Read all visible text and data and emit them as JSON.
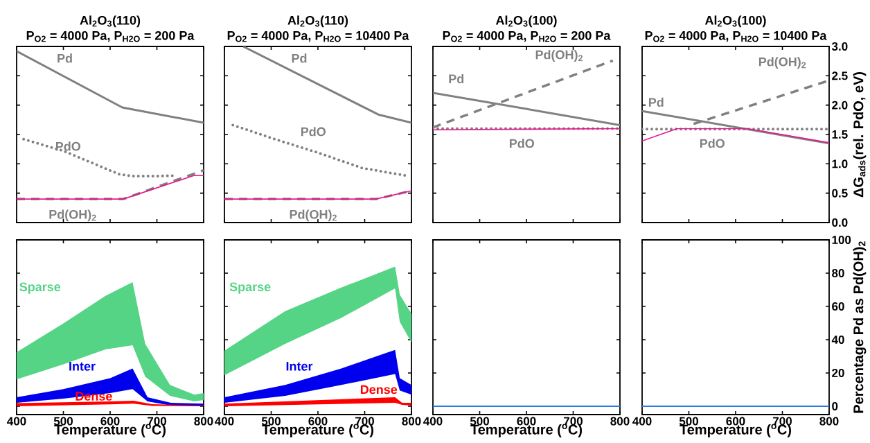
{
  "chart_data": [
    {
      "type": "line",
      "title": "Al$_{2}$O$_{3}$(110)",
      "subtitle": "P$_{O2}$ = 4000 Pa, P$_{H2O}$ = 200 Pa",
      "xlim": [
        400,
        800
      ],
      "ylim": [
        0,
        3.0
      ],
      "xticks": [
        400,
        500,
        600,
        700,
        800
      ],
      "yticks": [
        0,
        0.5,
        1.0,
        1.5,
        2.0,
        2.5,
        3.0
      ],
      "tick_labels": false,
      "marker": "none",
      "series": [
        {
          "name": "Pd",
          "color": "#808080",
          "line_style": "solid",
          "x": [
            400,
            626,
            800
          ],
          "values": [
            2.92,
            1.96,
            1.7
          ]
        },
        {
          "name": "PdO",
          "color": "#808080",
          "line_style": "dotted",
          "x": [
            415,
            500,
            560,
            620,
            650,
            700,
            740
          ],
          "values": [
            1.42,
            1.22,
            1.02,
            0.82,
            0.79,
            0.79,
            0.8
          ]
        },
        {
          "name": "Pd(OH)$_{2}$",
          "color": "#808080",
          "line_style": "dashed",
          "x": [
            400,
            628,
            800
          ],
          "values": [
            0.4,
            0.4,
            0.89
          ]
        },
        {
          "color": "#e8168c",
          "line_style": "solid",
          "x": [
            400,
            628,
            779,
            800
          ],
          "values": [
            0.4,
            0.4,
            0.8,
            0.8
          ]
        }
      ]
    },
    {
      "type": "line",
      "title": "Al$_{2}$O$_{3}$(110)",
      "subtitle": "P$_{O2}$ = 4000 Pa, P$_{H2O}$ = 10400 Pa",
      "xlim": [
        400,
        800
      ],
      "ylim": [
        0,
        3.0
      ],
      "xticks": [
        400,
        500,
        600,
        700,
        800
      ],
      "yticks": [
        0,
        0.5,
        1.0,
        1.5,
        2.0,
        2.5,
        3.0
      ],
      "tick_labels": false,
      "marker": "none",
      "series": [
        {
          "name": "Pd",
          "color": "#808080",
          "line_style": "solid",
          "x": [
            440,
            729,
            800
          ],
          "values": [
            3.0,
            1.84,
            1.7
          ]
        },
        {
          "name": "PdO",
          "color": "#808080",
          "line_style": "dotted",
          "x": [
            418,
            512,
            600,
            694,
            788
          ],
          "values": [
            1.66,
            1.41,
            1.19,
            0.93,
            0.8
          ]
        },
        {
          "name": "Pd(OH)$_{2}$",
          "color": "#808080",
          "line_style": "dashed",
          "x": [
            400,
            724,
            800
          ],
          "values": [
            0.4,
            0.4,
            0.54
          ]
        },
        {
          "color": "#e8168c",
          "line_style": "solid",
          "x": [
            400,
            724,
            800
          ],
          "values": [
            0.4,
            0.4,
            0.54
          ]
        }
      ]
    },
    {
      "type": "line",
      "title": "Al$_{2}$O$_{3}$(100)",
      "subtitle": "P$_{O2}$ = 4000 Pa, P$_{H2O}$ = 200 Pa",
      "xlim": [
        400,
        800
      ],
      "ylim": [
        0,
        3.0
      ],
      "xticks": [
        400,
        500,
        600,
        700,
        800
      ],
      "yticks": [
        0,
        0.5,
        1.0,
        1.5,
        2.0,
        2.5,
        3.0
      ],
      "tick_labels": false,
      "marker": "none",
      "series": [
        {
          "name": "Pd",
          "color": "#808080",
          "line_style": "solid",
          "x": [
            400,
            800
          ],
          "values": [
            2.21,
            1.66
          ]
        },
        {
          "name": "PdO",
          "color": "#808080",
          "line_style": "dotted",
          "x": [
            400,
            800
          ],
          "values": [
            1.6,
            1.6
          ]
        },
        {
          "name": "Pd(OH)$_{2}$",
          "color": "#808080",
          "line_style": "dashed",
          "x": [
            400,
            785
          ],
          "values": [
            1.62,
            2.76
          ]
        },
        {
          "color": "#e8168c",
          "line_style": "solid",
          "x": [
            400,
            800
          ],
          "values": [
            1.58,
            1.6
          ]
        }
      ]
    },
    {
      "type": "line",
      "title": "Al$_{2}$O$_{3}$(100)",
      "subtitle": "P$_{O2}$ = 4000 Pa, P$_{H2O}$ = 10400 Pa",
      "ylabel": "ΔG$_{ads}$(rel. PdO, eV)",
      "xlim": [
        400,
        800
      ],
      "ylim": [
        0,
        3.0
      ],
      "xticks": [
        400,
        500,
        600,
        700,
        800
      ],
      "yticks": [
        {
          "value": 0,
          "label": "0.0"
        },
        {
          "value": 0.5,
          "label": "0.5"
        },
        {
          "value": 1.0,
          "label": "1.0"
        },
        {
          "value": 1.5,
          "label": "1.5"
        },
        {
          "value": 2.0,
          "label": "2.0"
        },
        {
          "value": 2.5,
          "label": "2.5"
        },
        {
          "value": 3.0,
          "label": "3.0"
        }
      ],
      "tick_labels": "y",
      "marker": "none",
      "series": [
        {
          "name": "Pd",
          "color": "#808080",
          "line_style": "solid",
          "x": [
            400,
            800
          ],
          "values": [
            1.9,
            1.35
          ]
        },
        {
          "name": "PdO",
          "color": "#808080",
          "line_style": "dotted",
          "x": [
            400,
            800
          ],
          "values": [
            1.59,
            1.59
          ]
        },
        {
          "name": "Pd(OH)$_{2}$",
          "color": "#808080",
          "line_style": "dashed",
          "x": [
            510,
            800
          ],
          "values": [
            1.68,
            2.42
          ]
        },
        {
          "color": "#e8168c",
          "line_style": "solid",
          "x": [
            400,
            475,
            625,
            800
          ],
          "values": [
            1.39,
            1.6,
            1.6,
            1.36
          ]
        }
      ]
    },
    {
      "type": "area",
      "xlabel": "Temperature ($^{o}$C)",
      "xlim": [
        400,
        800
      ],
      "ylim": [
        -5,
        100
      ],
      "xticks": [
        400,
        500,
        600,
        700,
        800
      ],
      "yticks": [
        0,
        20,
        40,
        60,
        80,
        100
      ],
      "tick_labels": "x",
      "series": [
        {
          "name": "Sparse",
          "color": "#55d485",
          "x": [
            400,
            500,
            590,
            648,
            675,
            728,
            780,
            800
          ],
          "values": [
            null,
            null,
            null,
            null,
            null,
            null,
            null,
            null
          ],
          "upper": [
            32.5,
            49.8,
            66.3,
            74.6,
            37.5,
            12.8,
            7.0,
            7.9
          ],
          "lower": [
            16.1,
            25.2,
            34.2,
            36.7,
            17.8,
            6.2,
            2.9,
            3.7
          ]
        },
        {
          "name": "Inter",
          "color": "#0000ee",
          "x": [
            400,
            500,
            600,
            648,
            680,
            730,
            800
          ],
          "values": [
            null,
            null,
            null,
            null,
            null,
            null,
            null
          ],
          "upper": [
            5.4,
            10.3,
            16.9,
            22.7,
            5.4,
            2.1,
            1.6
          ],
          "lower": [
            2.1,
            4.6,
            7.9,
            10.3,
            2.9,
            0.4,
            0
          ]
        },
        {
          "name": "Dense",
          "color": "#ff0000",
          "x": [
            400,
            600,
            650,
            690,
            800
          ],
          "values": [
            null,
            null,
            null,
            null,
            null
          ],
          "upper": [
            1.9,
            2.9,
            3.3,
            1.2,
            0.4
          ],
          "lower": [
            0,
            1.1,
            1.6,
            0.2,
            0
          ]
        }
      ]
    },
    {
      "type": "area",
      "xlabel": "Temperature ($^{o}$C)",
      "xlim": [
        400,
        800
      ],
      "ylim": [
        -5,
        100
      ],
      "xticks": [
        400,
        500,
        600,
        700,
        800
      ],
      "yticks": [
        0,
        20,
        40,
        60,
        80,
        100
      ],
      "tick_labels": "x",
      "series": [
        {
          "name": "Sparse",
          "color": "#55d485",
          "x": [
            400,
            530,
            650,
            765,
            775,
            800
          ],
          "values": [
            null,
            null,
            null,
            null,
            null,
            null
          ],
          "upper": [
            33.4,
            57.2,
            71.3,
            84.0,
            67.1,
            55.6
          ],
          "lower": [
            18.6,
            37.5,
            53.1,
            70.8,
            50.7,
            38.3
          ]
        },
        {
          "name": "Inter",
          "color": "#0000ee",
          "x": [
            400,
            530,
            650,
            765,
            775,
            800
          ],
          "values": [
            null,
            null,
            null,
            null,
            null,
            null
          ],
          "upper": [
            5.4,
            12.8,
            22.7,
            33.9,
            16.9,
            12.8
          ],
          "lower": [
            2.1,
            6.2,
            12.8,
            19.4,
            9.5,
            7.0
          ]
        },
        {
          "name": "Dense",
          "color": "#ff0000",
          "x": [
            400,
            765,
            780,
            800
          ],
          "values": [
            null,
            null,
            null,
            null
          ],
          "upper": [
            1.6,
            5.4,
            2.1,
            2.1
          ],
          "lower": [
            0,
            2.1,
            0.8,
            0.4
          ]
        }
      ]
    },
    {
      "type": "line",
      "xlabel": "Temperature ($^{o}$C)",
      "xlim": [
        400,
        800
      ],
      "ylim": [
        -5,
        100
      ],
      "xticks": [
        400,
        500,
        600,
        700,
        800
      ],
      "yticks": [
        0,
        20,
        40,
        60,
        80,
        100
      ],
      "tick_labels": "x",
      "marker": "none",
      "series": [
        {
          "color": "#2a7ae2",
          "line_style": "solid",
          "x": [
            400,
            800
          ],
          "values": [
            0,
            0
          ]
        }
      ]
    },
    {
      "type": "line",
      "xlabel": "Temperature ($^{o}$C)",
      "ylabel": "Percentage Pd as Pd(OH)$_{2}$",
      "xlim": [
        400,
        800
      ],
      "ylim": [
        -5,
        100
      ],
      "xticks": [
        400,
        500,
        600,
        700,
        800
      ],
      "yticks": [
        0,
        20,
        40,
        60,
        80,
        100
      ],
      "marker": "none",
      "series": [
        {
          "color": "#2a7ae2",
          "line_style": "solid",
          "x": [
            400,
            800
          ],
          "values": [
            0,
            0
          ]
        }
      ]
    }
  ]
}
